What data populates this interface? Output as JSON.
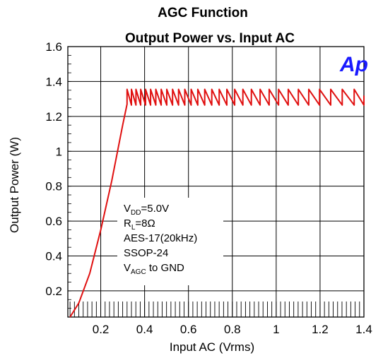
{
  "chart_data": {
    "type": "line",
    "title": "AGC Function",
    "subtitle": "Output Power vs. Input AC",
    "xlabel": "Input AC (Vrms)",
    "ylabel": "Output Power (W)",
    "xlim": [
      0.05,
      1.4
    ],
    "ylim": [
      0.05,
      1.6
    ],
    "x_ticks": [
      "0.2",
      "0.4",
      "0.6",
      "0.8",
      "1",
      "1.2",
      "1.4"
    ],
    "y_ticks": [
      "0.2",
      "0.4",
      "0.6",
      "0.8",
      "1",
      "1.2",
      "1.4",
      "1.6"
    ],
    "grid": true,
    "series": [
      {
        "color": "#e01010",
        "ramp": {
          "x": [
            0.06,
            0.1,
            0.15,
            0.2,
            0.25,
            0.3,
            0.32
          ],
          "y": [
            0.05,
            0.13,
            0.3,
            0.55,
            0.83,
            1.15,
            1.27
          ]
        },
        "sawtooth": {
          "x_start": 0.32,
          "x_end": 1.4,
          "y_low": 1.265,
          "y_high": 1.355,
          "period_start": 0.02,
          "period_end": 0.058
        }
      }
    ],
    "annotation": {
      "lines": [
        {
          "main": "V",
          "sub": "DD",
          "rest": "=5.0V"
        },
        {
          "main": "R",
          "sub": "L",
          "rest": "=8Ω"
        },
        {
          "main": "AES-17(20kHz)",
          "sub": "",
          "rest": ""
        },
        {
          "main": "SSOP-24",
          "sub": "",
          "rest": ""
        },
        {
          "main": "V",
          "sub": "AGC",
          "rest": " to GND"
        }
      ]
    }
  },
  "logo": {
    "text": "Ap",
    "color": "#1a1aff"
  }
}
